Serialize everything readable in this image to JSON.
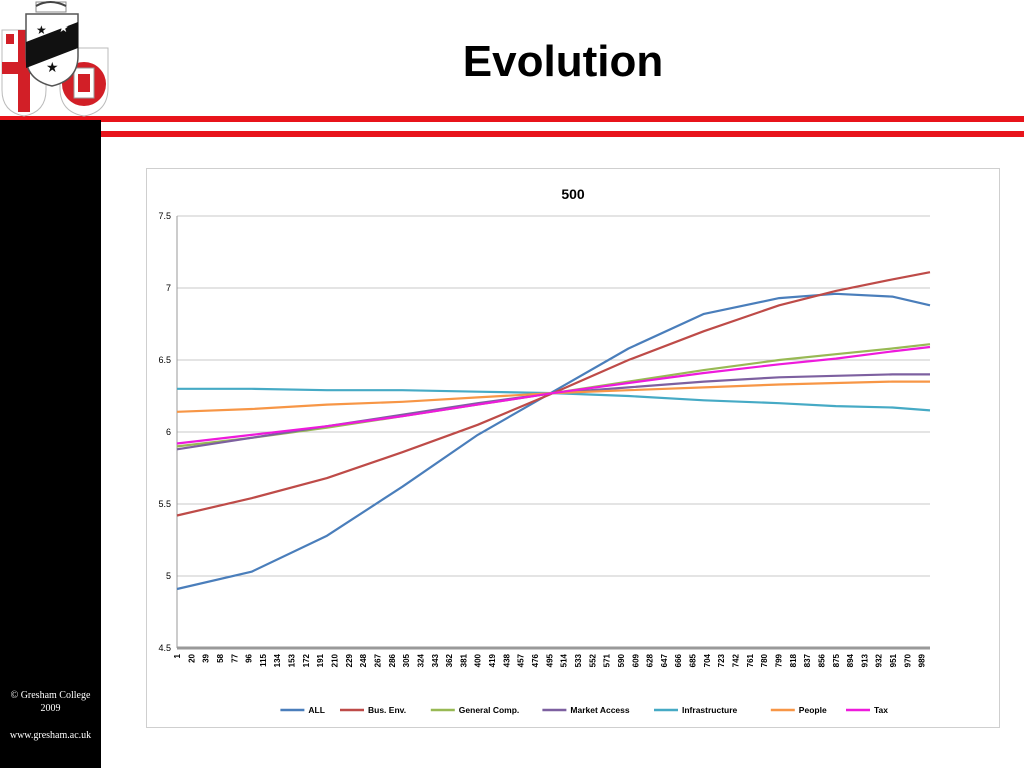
{
  "slide": {
    "title": "Evolution",
    "footer_line1": "© Gresham College",
    "footer_line2": "2009",
    "footer_url": "www.gresham.ac.uk"
  },
  "colors": {
    "accent_red": "#e8141b",
    "sidebar": "#000000"
  },
  "chart_data": {
    "type": "line",
    "title": "500",
    "xlabel": "",
    "ylabel": "",
    "ylim": [
      4.5,
      7.5
    ],
    "yticks": [
      "4.5",
      "5",
      "5.5",
      "6",
      "6.5",
      "7",
      "7.5"
    ],
    "xlim": [
      1,
      1000
    ],
    "xticks": [
      "1",
      "20",
      "39",
      "58",
      "77",
      "96",
      "115",
      "134",
      "153",
      "172",
      "191",
      "210",
      "229",
      "248",
      "267",
      "286",
      "305",
      "324",
      "343",
      "362",
      "381",
      "400",
      "419",
      "438",
      "457",
      "476",
      "495",
      "514",
      "533",
      "552",
      "571",
      "590",
      "609",
      "628",
      "647",
      "666",
      "685",
      "704",
      "723",
      "742",
      "761",
      "780",
      "799",
      "818",
      "837",
      "856",
      "875",
      "894",
      "913",
      "932",
      "951",
      "970",
      "989"
    ],
    "grid": "horizontal",
    "legend_position": "bottom",
    "x": [
      1,
      100,
      200,
      300,
      400,
      500,
      600,
      700,
      800,
      875,
      950,
      1000
    ],
    "series": [
      {
        "name": "ALL",
        "color": "#4a7ebb",
        "values": [
          4.91,
          5.03,
          5.28,
          5.62,
          5.98,
          6.28,
          6.58,
          6.82,
          6.93,
          6.96,
          6.94,
          6.88
        ]
      },
      {
        "name": "Bus. Env.",
        "color": "#be4b48",
        "values": [
          5.42,
          5.54,
          5.68,
          5.86,
          6.05,
          6.27,
          6.5,
          6.7,
          6.88,
          6.98,
          7.06,
          7.11
        ]
      },
      {
        "name": "General Comp.",
        "color": "#98b954",
        "values": [
          5.9,
          5.96,
          6.03,
          6.11,
          6.19,
          6.27,
          6.35,
          6.43,
          6.5,
          6.54,
          6.58,
          6.61
        ]
      },
      {
        "name": "Market Access",
        "color": "#7d60a0",
        "values": [
          5.88,
          5.96,
          6.04,
          6.12,
          6.2,
          6.27,
          6.31,
          6.35,
          6.38,
          6.39,
          6.4,
          6.4
        ]
      },
      {
        "name": "Infrastructure",
        "color": "#46aac5",
        "values": [
          6.3,
          6.3,
          6.29,
          6.29,
          6.28,
          6.27,
          6.25,
          6.22,
          6.2,
          6.18,
          6.17,
          6.15
        ]
      },
      {
        "name": "People",
        "color": "#f79646",
        "values": [
          6.14,
          6.16,
          6.19,
          6.21,
          6.24,
          6.27,
          6.29,
          6.31,
          6.33,
          6.34,
          6.35,
          6.35
        ]
      },
      {
        "name": "Tax",
        "color": "#ee1adc",
        "values": [
          5.92,
          5.98,
          6.04,
          6.11,
          6.19,
          6.27,
          6.34,
          6.41,
          6.47,
          6.51,
          6.56,
          6.59
        ]
      }
    ]
  }
}
